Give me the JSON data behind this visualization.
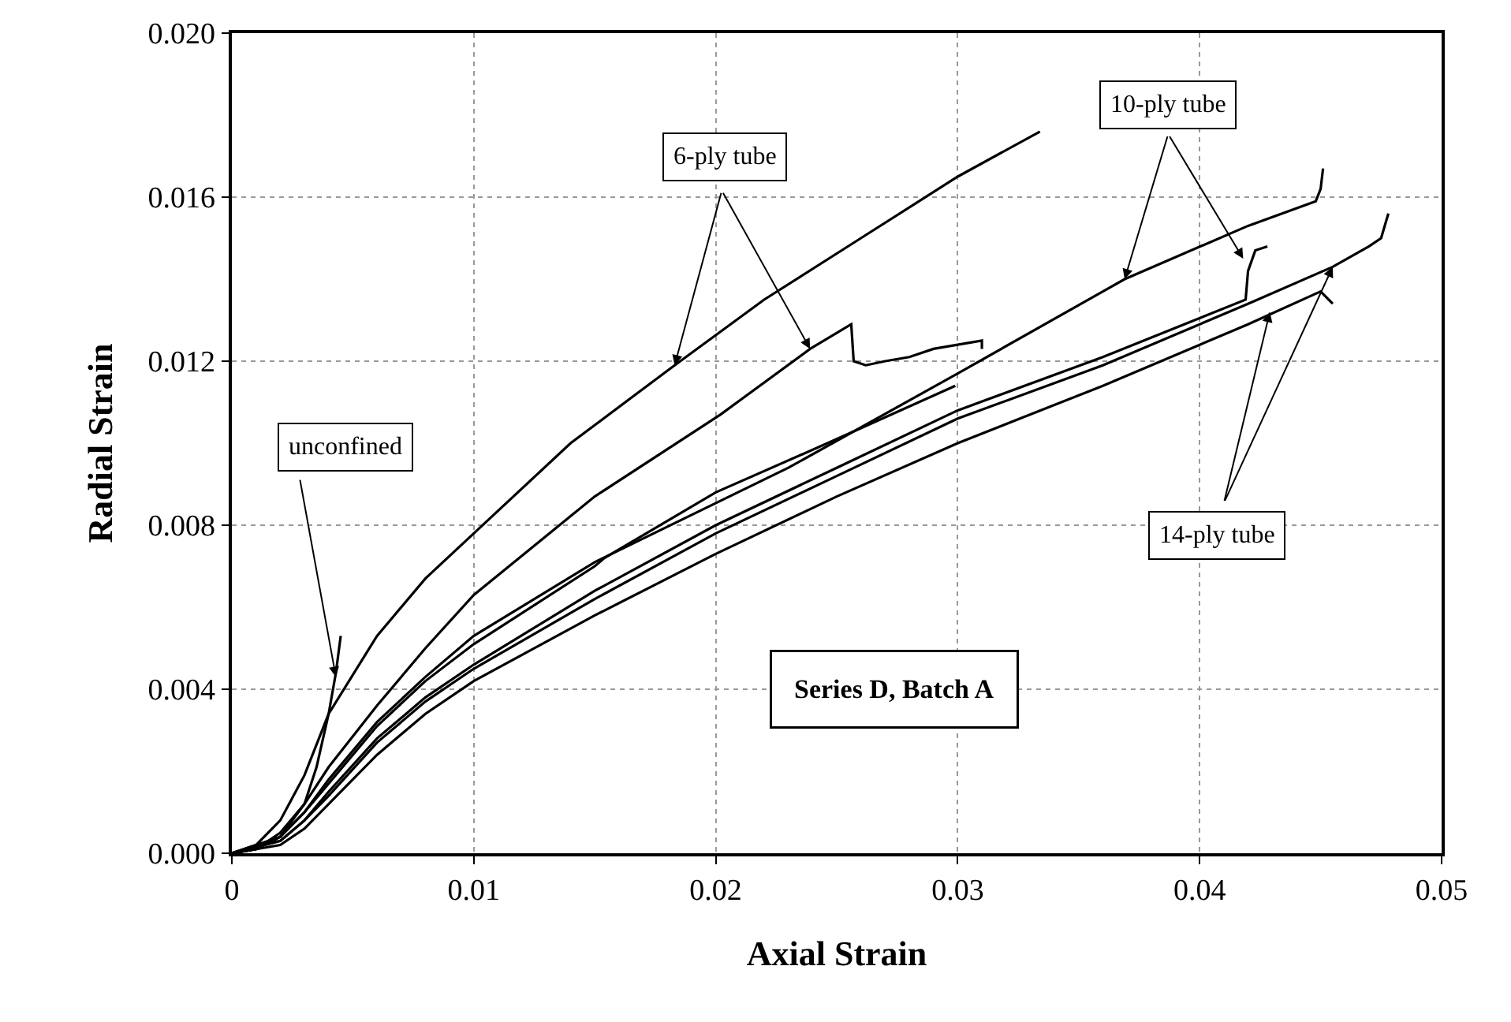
{
  "chart_data": {
    "type": "line",
    "xlabel": "Axial Strain",
    "ylabel": "Radial Strain",
    "xlim": [
      0,
      0.05
    ],
    "ylim": [
      0,
      0.02
    ],
    "xticks": [
      0,
      0.01,
      0.02,
      0.03,
      0.04,
      0.05
    ],
    "yticks": [
      {
        "value": 0,
        "label": "0.000"
      },
      {
        "value": 0.004,
        "label": "0.004"
      },
      {
        "value": 0.008,
        "label": "0.008"
      },
      {
        "value": 0.012,
        "label": "0.012"
      },
      {
        "value": 0.016,
        "label": "0.016"
      },
      {
        "value": 0.02,
        "label": "0.020"
      }
    ],
    "grid": true,
    "marker": "none",
    "line_style": "solid",
    "series": [
      {
        "color": "#000000",
        "x": [
          0,
          0.001,
          0.002,
          0.003,
          0.0035,
          0.004,
          0.0043,
          0.0045
        ],
        "values": [
          0,
          0.0001,
          0.0004,
          0.0012,
          0.0021,
          0.0034,
          0.0044,
          0.0053
        ]
      },
      {
        "color": "#000000",
        "x": [
          0,
          0.001,
          0.002,
          0.003,
          0.004,
          0.006,
          0.008,
          0.01,
          0.014,
          0.0183,
          0.022,
          0.026,
          0.03,
          0.0334
        ],
        "values": [
          0,
          0.0002,
          0.0008,
          0.0019,
          0.0034,
          0.0053,
          0.0067,
          0.0078,
          0.01,
          0.0119,
          0.0135,
          0.015,
          0.0165,
          0.0176
        ]
      },
      {
        "color": "#000000",
        "x": [
          0,
          0.001,
          0.002,
          0.003,
          0.004,
          0.006,
          0.008,
          0.01,
          0.015,
          0.0202,
          0.0239,
          0.0256,
          0.0257,
          0.0262,
          0.027,
          0.028,
          0.029,
          0.03,
          0.031,
          0.031
        ],
        "values": [
          0,
          0.0001,
          0.0005,
          0.0012,
          0.0021,
          0.0036,
          0.005,
          0.0063,
          0.0087,
          0.0107,
          0.0123,
          0.0129,
          0.012,
          0.0119,
          0.012,
          0.0121,
          0.0123,
          0.0124,
          0.0125,
          0.0123
        ]
      },
      {
        "color": "#000000",
        "x": [
          0,
          0.001,
          0.002,
          0.003,
          0.004,
          0.006,
          0.008,
          0.01,
          0.015,
          0.023,
          0.03,
          0.036,
          0.0369,
          0.042,
          0.0448,
          0.045,
          0.0451
        ],
        "values": [
          0,
          0.0001,
          0.0004,
          0.001,
          0.0018,
          0.0032,
          0.0043,
          0.0053,
          0.0071,
          0.0094,
          0.0117,
          0.0137,
          0.014,
          0.0153,
          0.0159,
          0.0162,
          0.0167
        ]
      },
      {
        "color": "#000000",
        "x": [
          0,
          0.002,
          0.003,
          0.004,
          0.006,
          0.008,
          0.01,
          0.015,
          0.0154,
          0.02,
          0.025,
          0.0299
        ],
        "values": [
          0,
          0.0004,
          0.001,
          0.0017,
          0.0031,
          0.0042,
          0.0051,
          0.007,
          0.0072,
          0.0088,
          0.0101,
          0.0114
        ]
      },
      {
        "color": "#000000",
        "x": [
          0,
          0.002,
          0.003,
          0.004,
          0.006,
          0.008,
          0.01,
          0.015,
          0.02,
          0.025,
          0.03,
          0.036,
          0.0419,
          0.042,
          0.0423,
          0.0428
        ],
        "values": [
          0,
          0.0003,
          0.0008,
          0.0015,
          0.0028,
          0.0038,
          0.0046,
          0.0064,
          0.008,
          0.0094,
          0.0108,
          0.0121,
          0.0135,
          0.0142,
          0.0147,
          0.0148
        ]
      },
      {
        "color": "#000000",
        "x": [
          0,
          0.002,
          0.003,
          0.004,
          0.006,
          0.008,
          0.01,
          0.015,
          0.02,
          0.025,
          0.03,
          0.036,
          0.042,
          0.0455,
          0.047,
          0.0475,
          0.0478
        ],
        "values": [
          0,
          0.0003,
          0.0008,
          0.0014,
          0.0027,
          0.0037,
          0.0045,
          0.0062,
          0.0078,
          0.0092,
          0.0106,
          0.0119,
          0.0134,
          0.0143,
          0.0148,
          0.015,
          0.0156
        ]
      },
      {
        "color": "#000000",
        "x": [
          0,
          0.002,
          0.003,
          0.004,
          0.006,
          0.008,
          0.01,
          0.015,
          0.02,
          0.025,
          0.03,
          0.036,
          0.042,
          0.045,
          0.0455
        ],
        "values": [
          0,
          0.0002,
          0.0006,
          0.0012,
          0.0024,
          0.0034,
          0.0042,
          0.0058,
          0.0073,
          0.0087,
          0.01,
          0.0114,
          0.0129,
          0.0137,
          0.0134
        ]
      }
    ],
    "annotations": [
      {
        "text": "unconfined",
        "x": 0.0043,
        "y": 0.0043
      },
      {
        "text": "6-ply tube",
        "x": 0.0183,
        "y": 0.0119
      },
      {
        "text": "10-ply tube",
        "x": 0.0369,
        "y": 0.014
      },
      {
        "text": "14-ply tube",
        "x": 0.0455,
        "y": 0.0143
      },
      "Series D, Batch A"
    ]
  }
}
